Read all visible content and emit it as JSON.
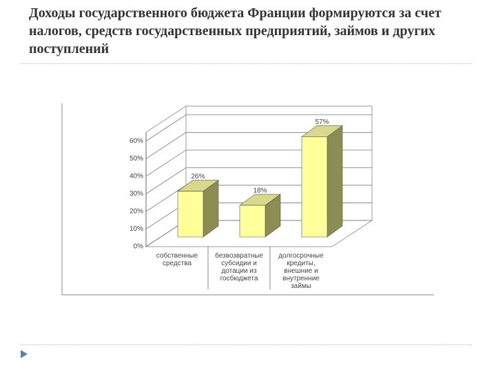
{
  "chart_data": {
    "type": "bar3d",
    "title": "Доходы государственного бюджета Франции формируются за счет налогов, средств государственных предприятий, займов и других поступлений",
    "categories": [
      "собственные средства",
      "безвозвратные субсидии и дотации из госбюджета",
      "долгосрочные кредиты, внешние и внутренние займы"
    ],
    "values": [
      26,
      18,
      57
    ],
    "value_labels": [
      "26%",
      "18%",
      "57%"
    ],
    "color": "#ffff99",
    "ylim": [
      0,
      65
    ],
    "yticks": [
      {
        "value": 0,
        "label": "0%"
      },
      {
        "value": 10,
        "label": "10%"
      },
      {
        "value": 20,
        "label": "20%"
      },
      {
        "value": 30,
        "label": "30%"
      },
      {
        "value": 40,
        "label": "40%"
      },
      {
        "value": 50,
        "label": "50%"
      },
      {
        "value": 60,
        "label": "60%"
      }
    ],
    "grid": true
  }
}
